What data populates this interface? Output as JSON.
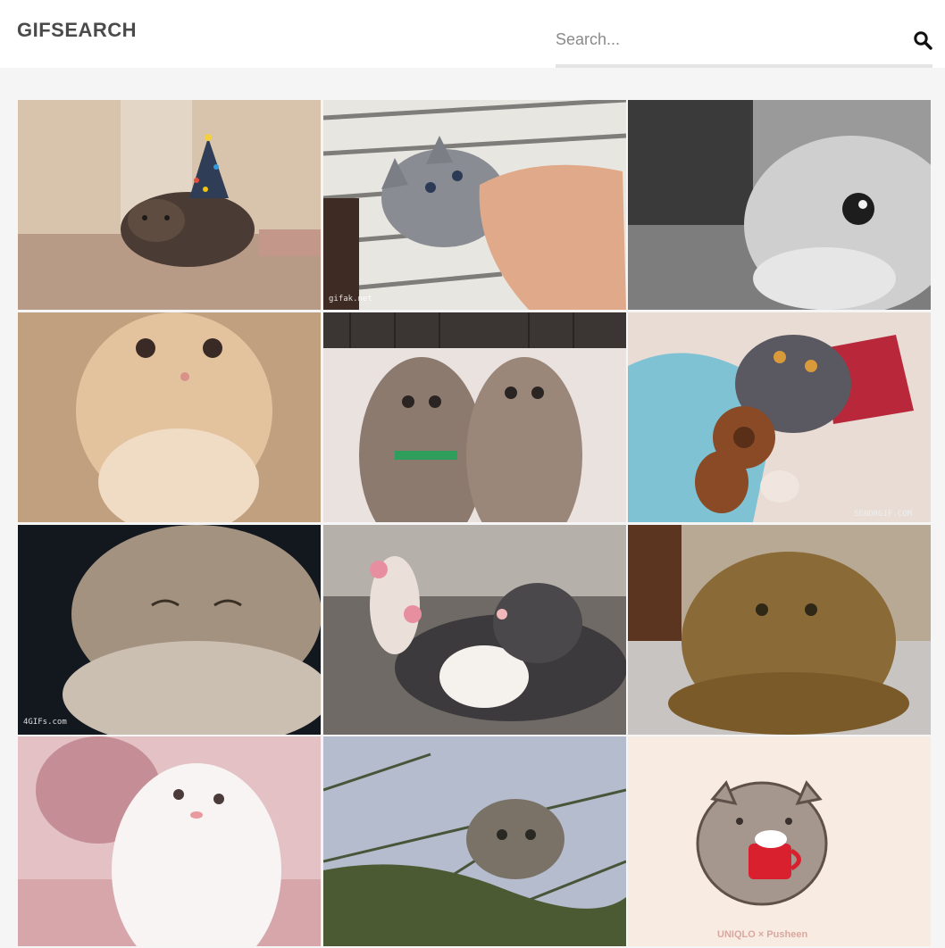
{
  "header": {
    "logo": "GIFSEARCH",
    "search": {
      "placeholder": "Search...",
      "value": ""
    }
  },
  "results": [
    {
      "name": "kitten-christmas-tree-hat",
      "caption": ""
    },
    {
      "name": "gray-kitten-biting-hand",
      "caption": "gifak.net"
    },
    {
      "name": "bw-kitten-peeking",
      "caption": ""
    },
    {
      "name": "orange-fluffy-kitten",
      "caption": ""
    },
    {
      "name": "two-tabby-kittens-looking-up",
      "caption": ""
    },
    {
      "name": "cat-hugging-teddy-bear",
      "caption": "SENORGIF.COM"
    },
    {
      "name": "sleepy-tabby-kitten",
      "caption": "4GIFs.com"
    },
    {
      "name": "kitten-pink-paws-up",
      "caption": ""
    },
    {
      "name": "brown-fluffy-kitten",
      "caption": ""
    },
    {
      "name": "white-kitten-yawning",
      "caption": ""
    },
    {
      "name": "kitten-in-pine-tree",
      "caption": ""
    },
    {
      "name": "pusheen-cocoa-mug",
      "caption": "UNIQLO × Pusheen"
    }
  ]
}
